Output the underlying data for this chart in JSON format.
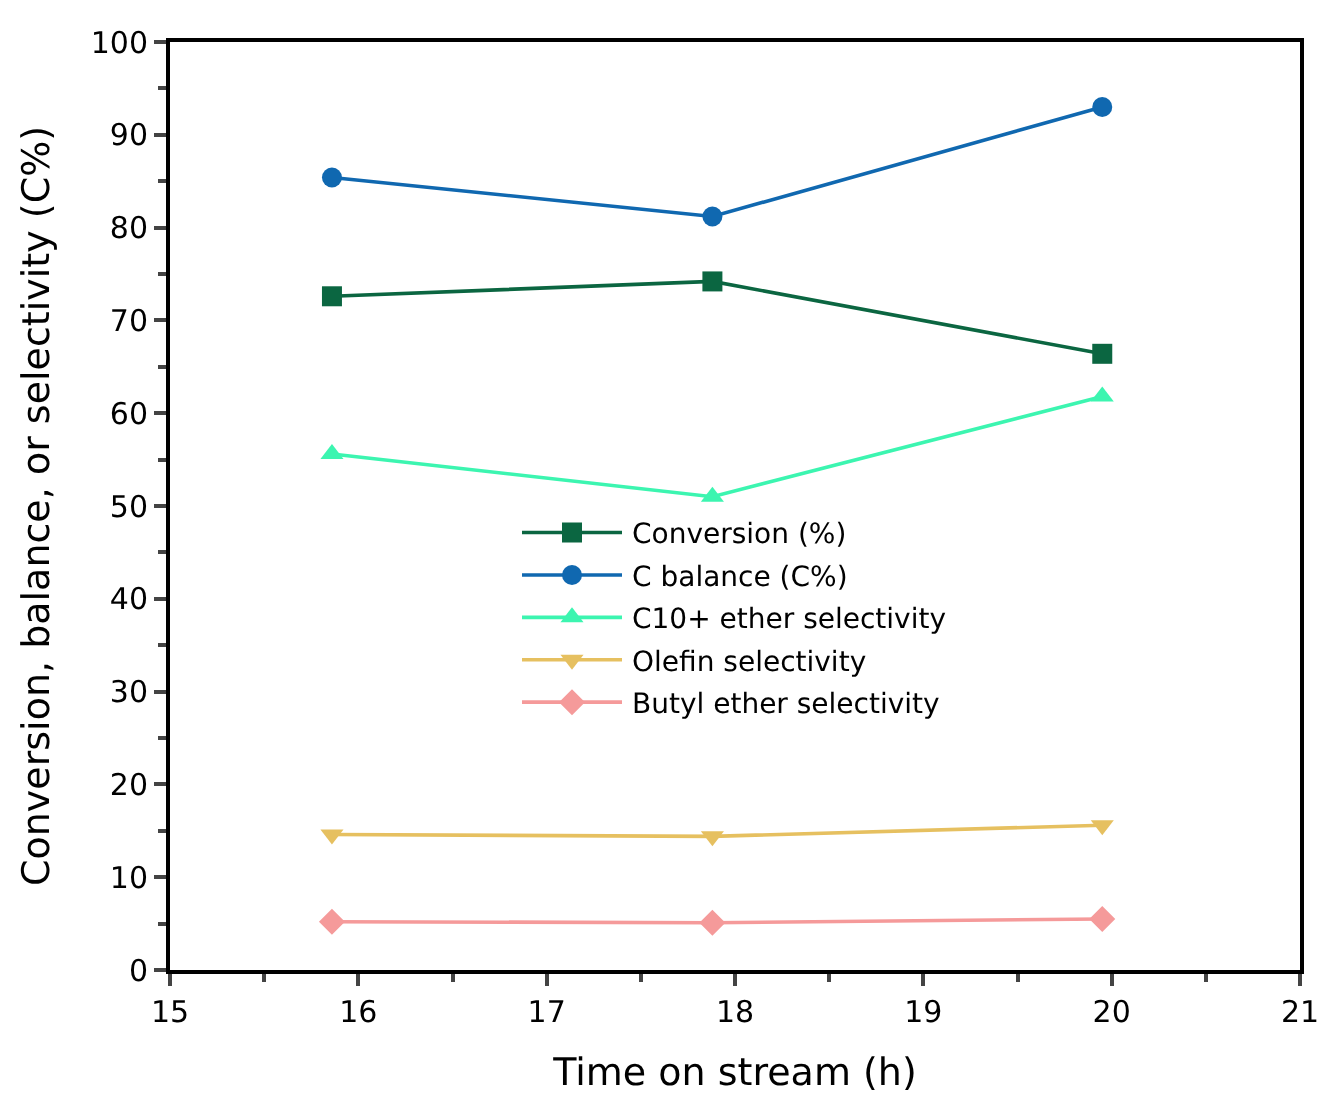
{
  "chart_data": {
    "type": "line",
    "xlabel": "Time on stream (h)",
    "ylabel": "Conversion, balance, or selectivity (C%)",
    "x": [
      15.86,
      17.88,
      19.95
    ],
    "xlim": [
      15,
      21
    ],
    "xticks": [
      15,
      16,
      17,
      18,
      19,
      20,
      21
    ],
    "ylim": [
      0,
      100
    ],
    "yticks": [
      0,
      10,
      20,
      30,
      40,
      50,
      60,
      70,
      80,
      90,
      100
    ],
    "legend": "center",
    "line_style": "solid",
    "series": [
      {
        "name": "Conversion (%)",
        "color": "#0b6641",
        "marker": "square",
        "values": [
          72.6,
          74.2,
          66.4
        ]
      },
      {
        "name": "C balance (C%)",
        "color": "#1068b0",
        "marker": "circle",
        "values": [
          85.4,
          81.2,
          93.0
        ]
      },
      {
        "name": "C10+ ether selectivity",
        "color": "#3cf5b0",
        "marker": "triangle",
        "values": [
          55.6,
          51.0,
          61.8
        ]
      },
      {
        "name": "Olefin selectivity",
        "color": "#e6c060",
        "marker": "triangle-down",
        "values": [
          14.6,
          14.4,
          15.6
        ]
      },
      {
        "name": "Butyl ether selectivity",
        "color": "#f59a9a",
        "marker": "diamond",
        "values": [
          5.2,
          5.1,
          5.5
        ]
      }
    ]
  }
}
